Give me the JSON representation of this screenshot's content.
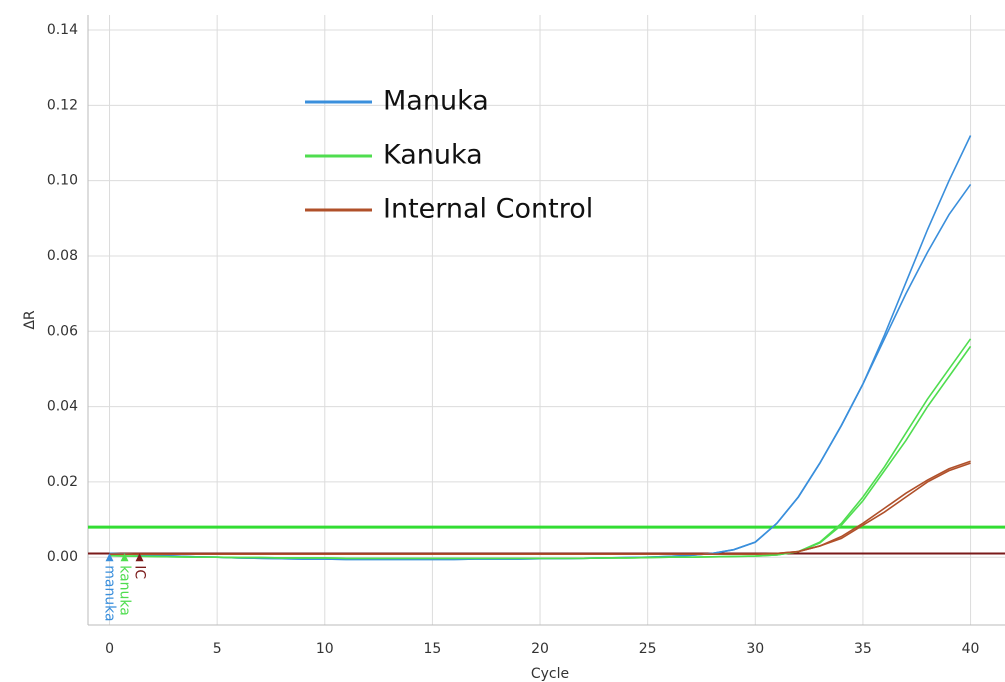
{
  "chart_data": {
    "type": "line",
    "x_label": "Cycle",
    "y_label": "ΔR",
    "xlim": [
      -1,
      41.6
    ],
    "ylim": [
      -0.018,
      0.144
    ],
    "xticks": [
      0,
      5,
      10,
      15,
      20,
      25,
      30,
      35,
      40
    ],
    "yticks": [
      {
        "value": 0,
        "label": "0.00"
      },
      0.02,
      0.04,
      0.06,
      0.08,
      {
        "value": 0.1,
        "label": "0.10"
      },
      0.12,
      0.14
    ],
    "grid": true,
    "x": [
      0,
      1,
      2,
      3,
      4,
      5,
      6,
      7,
      8,
      9,
      10,
      11,
      12,
      13,
      14,
      15,
      16,
      17,
      18,
      19,
      20,
      21,
      22,
      23,
      24,
      25,
      26,
      27,
      28,
      29,
      30,
      31,
      32,
      33,
      34,
      35,
      36,
      37,
      38,
      39,
      40
    ],
    "series": [
      {
        "name": "Manuka",
        "color": "#3a8fdc",
        "replicates": [
          [
            0.001,
            0.0008,
            0.0005,
            0.0003,
            0.0001,
            0,
            -0.0002,
            -0.0003,
            -0.0004,
            -0.0005,
            -0.0005,
            -0.0006,
            -0.0006,
            -0.0006,
            -0.0006,
            -0.0006,
            -0.0006,
            -0.0005,
            -0.0005,
            -0.0005,
            -0.0004,
            -0.0004,
            -0.0003,
            -0.0002,
            -0.0001,
            0,
            0.0002,
            0.0005,
            0.001,
            0.002,
            0.004,
            0.009,
            0.016,
            0.025,
            0.035,
            0.046,
            0.059,
            0.073,
            0.087,
            0.1,
            0.112
          ],
          [
            0.001,
            0.0008,
            0.0005,
            0.0003,
            0.0001,
            0,
            -0.0002,
            -0.0003,
            -0.0004,
            -0.0005,
            -0.0005,
            -0.0006,
            -0.0006,
            -0.0006,
            -0.0006,
            -0.0006,
            -0.0006,
            -0.0005,
            -0.0005,
            -0.0005,
            -0.0004,
            -0.0004,
            -0.0003,
            -0.0002,
            -0.0001,
            0,
            0.0002,
            0.0005,
            0.001,
            0.002,
            0.004,
            0.009,
            0.016,
            0.025,
            0.035,
            0.046,
            0.058,
            0.07,
            0.081,
            0.091,
            0.099
          ]
        ]
      },
      {
        "name": "Kanuka",
        "color": "#4fdd4f",
        "replicates": [
          [
            0.0004,
            0.0003,
            0.0002,
            0.0001,
            0,
            0,
            -0.0001,
            -0.0001,
            -0.0002,
            -0.0002,
            -0.0002,
            -0.0003,
            -0.0003,
            -0.0003,
            -0.0003,
            -0.0003,
            -0.0003,
            -0.0003,
            -0.0003,
            -0.0003,
            -0.0003,
            -0.0003,
            -0.0003,
            -0.0002,
            -0.0002,
            -0.0001,
            0,
            0,
            0.0001,
            0.0002,
            0.0003,
            0.0006,
            0.0015,
            0.004,
            0.009,
            0.016,
            0.024,
            0.033,
            0.042,
            0.05,
            0.058
          ],
          [
            0.0004,
            0.0003,
            0.0002,
            0.0001,
            0,
            0,
            -0.0001,
            -0.0001,
            -0.0002,
            -0.0002,
            -0.0002,
            -0.0003,
            -0.0003,
            -0.0003,
            -0.0003,
            -0.0003,
            -0.0003,
            -0.0003,
            -0.0003,
            -0.0003,
            -0.0003,
            -0.0003,
            -0.0003,
            -0.0002,
            -0.0002,
            -0.0001,
            0,
            0,
            0.0001,
            0.0002,
            0.0003,
            0.0006,
            0.0015,
            0.0038,
            0.0085,
            0.015,
            0.023,
            0.031,
            0.04,
            0.048,
            0.056
          ]
        ]
      },
      {
        "name": "Internal Control",
        "color": "#b0502a",
        "replicates": [
          [
            0.0008,
            0.0008,
            0.0008,
            0.0008,
            0.0008,
            0.0008,
            0.0008,
            0.0008,
            0.0008,
            0.0008,
            0.0008,
            0.0008,
            0.0008,
            0.0008,
            0.0008,
            0.0008,
            0.0008,
            0.0008,
            0.0008,
            0.0008,
            0.0008,
            0.0008,
            0.0008,
            0.0008,
            0.0008,
            0.0008,
            0.0008,
            0.0008,
            0.0008,
            0.0008,
            0.0008,
            0.001,
            0.0015,
            0.003,
            0.0055,
            0.009,
            0.013,
            0.017,
            0.0205,
            0.0235,
            0.0255
          ],
          [
            0.0008,
            0.0008,
            0.0008,
            0.0008,
            0.0008,
            0.0008,
            0.0008,
            0.0008,
            0.0008,
            0.0008,
            0.0008,
            0.0008,
            0.0008,
            0.0008,
            0.0008,
            0.0008,
            0.0008,
            0.0008,
            0.0008,
            0.0008,
            0.0008,
            0.0008,
            0.0008,
            0.0008,
            0.0008,
            0.0008,
            0.0008,
            0.0008,
            0.0008,
            0.0008,
            0.0008,
            0.001,
            0.0015,
            0.003,
            0.005,
            0.0085,
            0.012,
            0.016,
            0.02,
            0.023,
            0.025
          ]
        ]
      }
    ],
    "thresholds": [
      {
        "value": 0.008,
        "color": "#33dd33"
      },
      {
        "value": 0.001,
        "color": "#7a1a1a"
      }
    ],
    "markers": [
      {
        "label": "manuka",
        "color": "#3a8fdc"
      },
      {
        "label": "kanuka",
        "color": "#4fdd4f"
      },
      {
        "label": "IC",
        "color": "#7a1a1a"
      }
    ]
  }
}
